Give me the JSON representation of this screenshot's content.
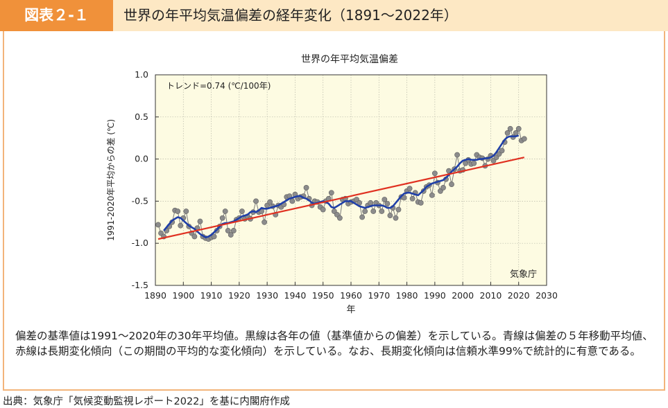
{
  "header": {
    "badge": "図表２-１",
    "title": "世界の年平均気温偏差の経年変化（1891～2022年）"
  },
  "chart_data": {
    "type": "line",
    "title": "世界の年平均気温偏差",
    "xlabel": "年",
    "ylabel": "1991-2020年平均からの差 (℃)",
    "xlim": [
      1890,
      2030
    ],
    "ylim": [
      -1.5,
      1.0
    ],
    "xticks": [
      1890,
      1900,
      1910,
      1920,
      1930,
      1940,
      1950,
      1960,
      1970,
      1980,
      1990,
      2000,
      2010,
      2020,
      2030
    ],
    "yticks": [
      -1.5,
      -1.0,
      -0.5,
      0.0,
      0.5,
      1.0
    ],
    "grid": true,
    "trend_label": "トレンド=0.74 (℃/100年)",
    "credit": "気象庁",
    "trend": {
      "x": [
        1891,
        2022
      ],
      "y": [
        -0.95,
        0.02
      ]
    },
    "colors": {
      "annual": "#7a7a7a",
      "moving_average": "#1f3fa8",
      "trend": "#e03020",
      "plot_bg": "#fdfbe2"
    },
    "series": [
      {
        "x": [
          1891,
          1892,
          1893,
          1894,
          1895,
          1896,
          1897,
          1898,
          1899,
          1900,
          1901,
          1902,
          1903,
          1904,
          1905,
          1906,
          1907,
          1908,
          1909,
          1910,
          1911,
          1912,
          1913,
          1914,
          1915,
          1916,
          1917,
          1918,
          1919,
          1920,
          1921,
          1922,
          1923,
          1924,
          1925,
          1926,
          1927,
          1928,
          1929,
          1930,
          1931,
          1932,
          1933,
          1934,
          1935,
          1936,
          1937,
          1938,
          1939,
          1940,
          1941,
          1942,
          1943,
          1944,
          1945,
          1946,
          1947,
          1948,
          1949,
          1950,
          1951,
          1952,
          1953,
          1954,
          1955,
          1956,
          1957,
          1958,
          1959,
          1960,
          1961,
          1962,
          1963,
          1964,
          1965,
          1966,
          1967,
          1968,
          1969,
          1970,
          1971,
          1972,
          1973,
          1974,
          1975,
          1976,
          1977,
          1978,
          1979,
          1980,
          1981,
          1982,
          1983,
          1984,
          1985,
          1986,
          1987,
          1988,
          1989,
          1990,
          1991,
          1992,
          1993,
          1994,
          1995,
          1996,
          1997,
          1998,
          1999,
          2000,
          2001,
          2002,
          2003,
          2004,
          2005,
          2006,
          2007,
          2008,
          2009,
          2010,
          2011,
          2012,
          2013,
          2014,
          2015,
          2016,
          2017,
          2018,
          2019,
          2020,
          2021,
          2022
        ],
        "values": [
          -0.78,
          -0.88,
          -0.92,
          -0.85,
          -0.8,
          -0.75,
          -0.61,
          -0.62,
          -0.79,
          -0.7,
          -0.62,
          -0.8,
          -0.88,
          -0.92,
          -0.82,
          -0.74,
          -0.92,
          -0.94,
          -0.95,
          -0.93,
          -0.92,
          -0.85,
          -0.8,
          -0.7,
          -0.62,
          -0.85,
          -0.9,
          -0.85,
          -0.72,
          -0.7,
          -0.62,
          -0.71,
          -0.68,
          -0.71,
          -0.63,
          -0.5,
          -0.63,
          -0.62,
          -0.75,
          -0.55,
          -0.51,
          -0.56,
          -0.66,
          -0.55,
          -0.57,
          -0.54,
          -0.45,
          -0.44,
          -0.5,
          -0.42,
          -0.47,
          -0.45,
          -0.44,
          -0.34,
          -0.47,
          -0.55,
          -0.5,
          -0.51,
          -0.57,
          -0.6,
          -0.5,
          -0.47,
          -0.4,
          -0.62,
          -0.66,
          -0.7,
          -0.48,
          -0.47,
          -0.53,
          -0.51,
          -0.5,
          -0.48,
          -0.52,
          -0.69,
          -0.62,
          -0.55,
          -0.52,
          -0.62,
          -0.52,
          -0.55,
          -0.62,
          -0.48,
          -0.53,
          -0.67,
          -0.58,
          -0.7,
          -0.6,
          -0.45,
          -0.46,
          -0.38,
          -0.35,
          -0.47,
          -0.4,
          -0.51,
          -0.52,
          -0.38,
          -0.33,
          -0.31,
          -0.43,
          -0.17,
          -0.28,
          -0.38,
          -0.34,
          -0.24,
          -0.14,
          -0.3,
          -0.12,
          0.05,
          -0.14,
          -0.13,
          -0.05,
          -0.01,
          -0.06,
          -0.05,
          0.05,
          0.02,
          0.01,
          -0.08,
          0.0,
          0.04,
          -0.02,
          0.02,
          0.06,
          0.1,
          0.2,
          0.31,
          0.36,
          0.26,
          0.31,
          0.36,
          0.22,
          0.24
        ]
      },
      {
        "x": [
          1893,
          1894,
          1895,
          1896,
          1897,
          1898,
          1899,
          1900,
          1901,
          1902,
          1903,
          1904,
          1905,
          1906,
          1907,
          1908,
          1909,
          1910,
          1911,
          1912,
          1913,
          1914,
          1915,
          1916,
          1917,
          1918,
          1919,
          1920,
          1921,
          1922,
          1923,
          1924,
          1925,
          1926,
          1927,
          1928,
          1929,
          1930,
          1931,
          1932,
          1933,
          1934,
          1935,
          1936,
          1937,
          1938,
          1939,
          1940,
          1941,
          1942,
          1943,
          1944,
          1945,
          1946,
          1947,
          1948,
          1949,
          1950,
          1951,
          1952,
          1953,
          1954,
          1955,
          1956,
          1957,
          1958,
          1959,
          1960,
          1961,
          1962,
          1963,
          1964,
          1965,
          1966,
          1967,
          1968,
          1969,
          1970,
          1971,
          1972,
          1973,
          1974,
          1975,
          1976,
          1977,
          1978,
          1979,
          1980,
          1981,
          1982,
          1983,
          1984,
          1985,
          1986,
          1987,
          1988,
          1989,
          1990,
          1991,
          1992,
          1993,
          1994,
          1995,
          1996,
          1997,
          1998,
          1999,
          2000,
          2001,
          2002,
          2003,
          2004,
          2005,
          2006,
          2007,
          2008,
          2009,
          2010,
          2011,
          2012,
          2013,
          2014,
          2015,
          2016,
          2017,
          2018,
          2019,
          2020
        ],
        "values": [
          -0.85,
          -0.81,
          -0.77,
          -0.73,
          -0.71,
          -0.69,
          -0.7,
          -0.73,
          -0.76,
          -0.79,
          -0.81,
          -0.83,
          -0.86,
          -0.89,
          -0.91,
          -0.93,
          -0.92,
          -0.9,
          -0.87,
          -0.84,
          -0.8,
          -0.77,
          -0.76,
          -0.76,
          -0.75,
          -0.74,
          -0.72,
          -0.7,
          -0.68,
          -0.67,
          -0.66,
          -0.63,
          -0.62,
          -0.63,
          -0.61,
          -0.58,
          -0.59,
          -0.59,
          -0.58,
          -0.57,
          -0.56,
          -0.55,
          -0.53,
          -0.51,
          -0.49,
          -0.47,
          -0.46,
          -0.45,
          -0.44,
          -0.44,
          -0.46,
          -0.47,
          -0.49,
          -0.52,
          -0.53,
          -0.52,
          -0.51,
          -0.5,
          -0.51,
          -0.53,
          -0.57,
          -0.58,
          -0.56,
          -0.54,
          -0.52,
          -0.5,
          -0.5,
          -0.5,
          -0.52,
          -0.54,
          -0.56,
          -0.57,
          -0.58,
          -0.57,
          -0.56,
          -0.55,
          -0.55,
          -0.55,
          -0.55,
          -0.56,
          -0.58,
          -0.58,
          -0.56,
          -0.52,
          -0.48,
          -0.44,
          -0.41,
          -0.4,
          -0.4,
          -0.41,
          -0.42,
          -0.43,
          -0.4,
          -0.37,
          -0.33,
          -0.31,
          -0.29,
          -0.28,
          -0.27,
          -0.26,
          -0.25,
          -0.22,
          -0.19,
          -0.15,
          -0.12,
          -0.09,
          -0.05,
          -0.02,
          -0.01,
          0.0,
          -0.01,
          -0.01,
          -0.01,
          0.0,
          0.0,
          0.01,
          0.01,
          0.02,
          0.04,
          0.08,
          0.13,
          0.18,
          0.23,
          0.26,
          0.27,
          0.27,
          0.27,
          0.28
        ]
      }
    ]
  },
  "description": "偏差の基準値は1991～2020年の30年平均値。黒線は各年の値（基準値からの偏差）を示している。青線は偏差の５年移動平均値、赤線は長期変化傾向（この期間の平均的な変化傾向）を示している。なお、長期変化傾向は信頼水準99%で統計的に有意である。",
  "source": "出典：気象庁「気候変動監視レポート2022」を基に内閣府作成"
}
